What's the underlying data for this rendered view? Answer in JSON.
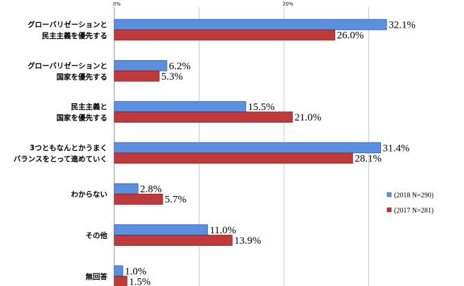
{
  "chart_data": {
    "type": "bar",
    "orientation": "horizontal",
    "title": "",
    "xlabel": "",
    "ylabel": "",
    "xlim": [
      0,
      40
    ],
    "x_ticks": [
      {
        "value": 0,
        "label": "0%"
      },
      {
        "value": 20,
        "label": "20%"
      }
    ],
    "grid": true,
    "legend_position": "right",
    "categories": [
      [
        "グローバリゼーションと",
        "民主主義を優先する"
      ],
      [
        "グローバリゼーションと",
        "国家を優先する"
      ],
      [
        "民主主義と",
        "国家を優先する"
      ],
      [
        "3つともなんとかうまく",
        "バランスをとって進めていく"
      ],
      [
        "わからない"
      ],
      [
        "その他"
      ],
      [
        "無回答"
      ]
    ],
    "series": [
      {
        "name": "(2018 N=290)",
        "color": "#5b8fe0",
        "edge": "#2a55a8",
        "values": [
          32.1,
          6.2,
          15.5,
          31.4,
          2.8,
          11.0,
          1.0
        ],
        "labels": [
          "32.1%",
          "6.2%",
          "15.5%",
          "31.4%",
          "2.8%",
          "11.0%",
          "1.0%"
        ]
      },
      {
        "name": "(2017 N=281)",
        "color": "#c0393b",
        "edge": "#7f1f21",
        "values": [
          26.0,
          5.3,
          21.0,
          28.1,
          5.7,
          13.9,
          1.5
        ],
        "labels": [
          "26.0%",
          "5.3%",
          "21.0%",
          "28.1%",
          "5.7%",
          "13.9%",
          "1.5%"
        ]
      }
    ]
  }
}
